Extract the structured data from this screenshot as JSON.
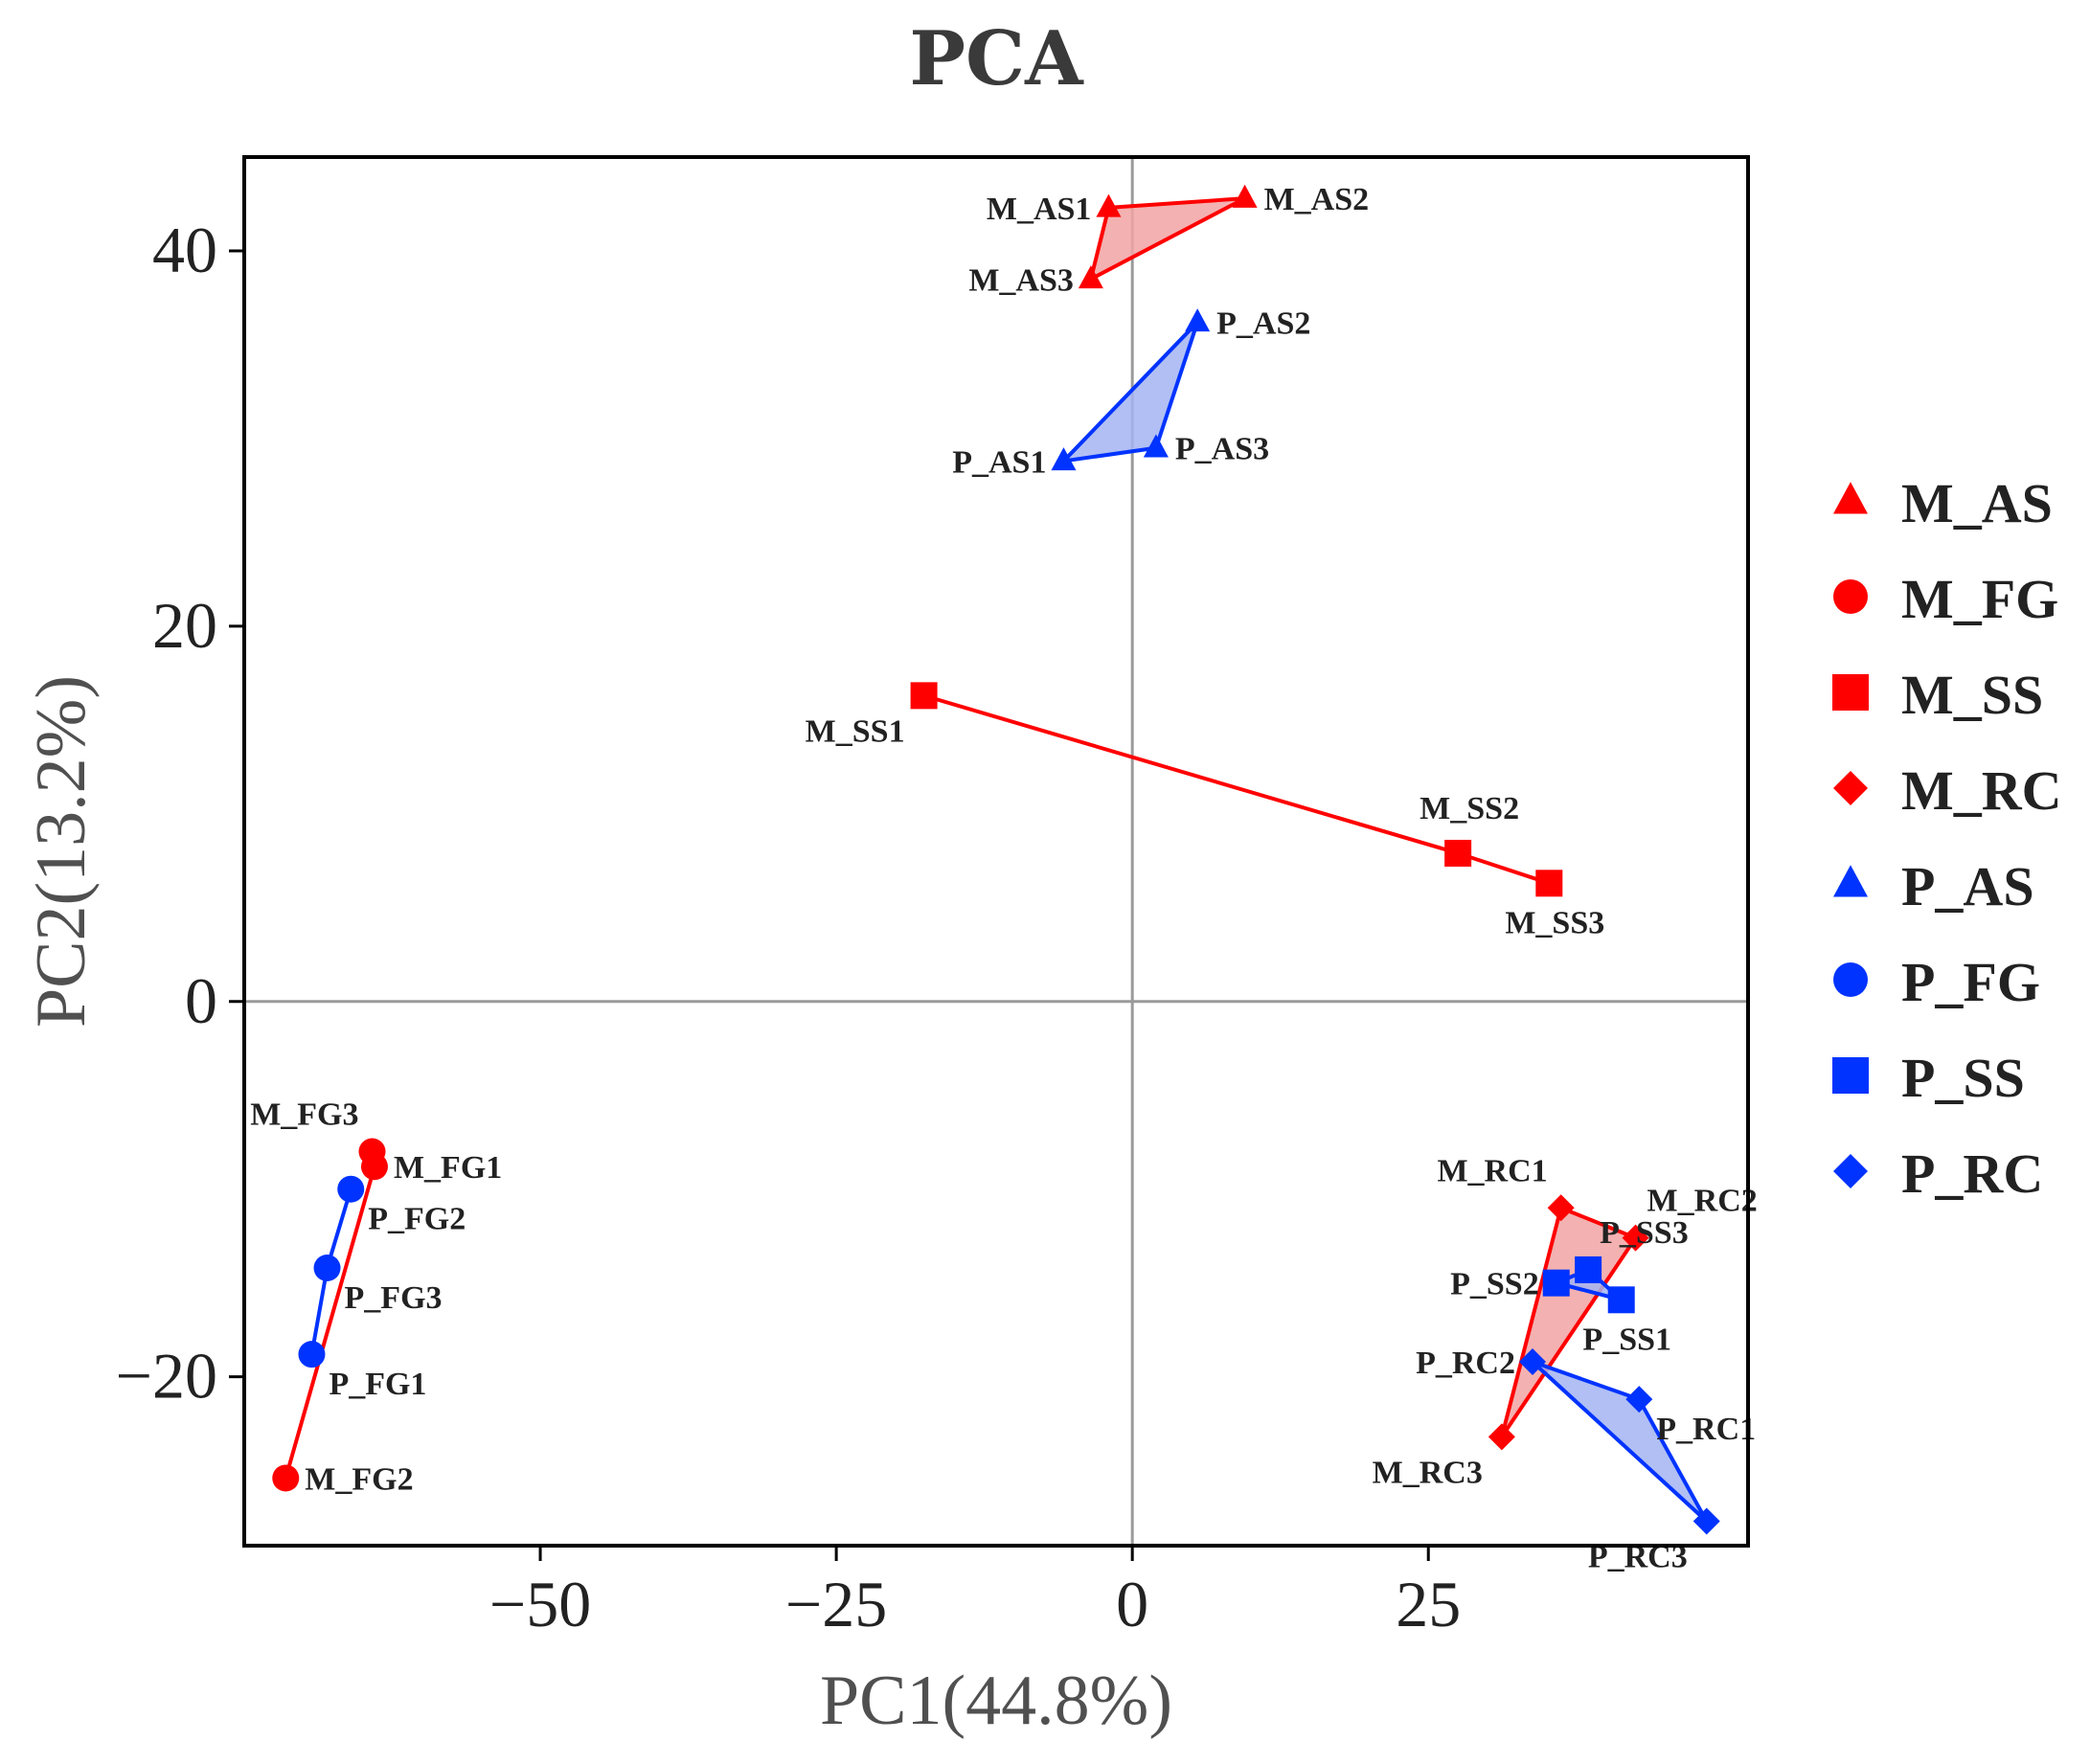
{
  "chart_data": {
    "type": "scatter",
    "title": "PCA",
    "xlabel": "PC1(44.8%)",
    "ylabel": "PC2(13.2%)",
    "xlim": [
      -75,
      52
    ],
    "ylim": [
      -29,
      45
    ],
    "xticks": [
      {
        "value": -50,
        "label": "−50"
      },
      {
        "value": -25,
        "label": "−25"
      },
      {
        "value": 0,
        "label": "0"
      },
      {
        "value": 25,
        "label": "25"
      }
    ],
    "yticks": [
      {
        "value": -20,
        "label": "−20"
      },
      {
        "value": 0,
        "label": "0"
      },
      {
        "value": 20,
        "label": "20"
      },
      {
        "value": 40,
        "label": "40"
      }
    ],
    "reference_lines": {
      "x": 0,
      "y": 0
    },
    "colors": {
      "M": "#ff0000",
      "P": "#0033ff",
      "M_fill": "#f2a3a3",
      "P_fill": "#a3b4f2"
    },
    "series": [
      {
        "name": "M_AS",
        "group": "M",
        "marker": "triangle",
        "hull": "polygon",
        "points": [
          {
            "label": "M_AS1",
            "x": -2,
            "y": 42.3,
            "pos": "left"
          },
          {
            "label": "M_AS2",
            "x": 9.5,
            "y": 42.8,
            "pos": "right"
          },
          {
            "label": "M_AS3",
            "x": -3.5,
            "y": 38.5,
            "pos": "left"
          }
        ]
      },
      {
        "name": "M_FG",
        "group": "M",
        "marker": "circle",
        "hull": "line",
        "points": [
          {
            "label": "M_FG3",
            "x": -64.2,
            "y": -8,
            "pos": "above-left"
          },
          {
            "label": "M_FG1",
            "x": -64,
            "y": -8.8,
            "pos": "right"
          },
          {
            "label": "M_FG2",
            "x": -71.5,
            "y": -25.4,
            "pos": "right"
          }
        ]
      },
      {
        "name": "M_SS",
        "group": "M",
        "marker": "square",
        "hull": "line",
        "points": [
          {
            "label": "M_SS1",
            "x": -17.6,
            "y": 16.3,
            "pos": "below-left"
          },
          {
            "label": "M_SS2",
            "x": 27.5,
            "y": 7.9,
            "pos": "above"
          },
          {
            "label": "M_SS3",
            "x": 35.2,
            "y": 6.3,
            "pos": "below"
          }
        ]
      },
      {
        "name": "M_RC",
        "group": "M",
        "marker": "diamond",
        "hull": "polygon",
        "points": [
          {
            "label": "M_RC1",
            "x": 36.2,
            "y": -11,
            "pos": "above-left"
          },
          {
            "label": "M_RC2",
            "x": 42.5,
            "y": -12.6,
            "pos": "above-right"
          },
          {
            "label": "M_RC3",
            "x": 31.2,
            "y": -23.2,
            "pos": "below-left"
          }
        ]
      },
      {
        "name": "P_AS",
        "group": "P",
        "marker": "triangle",
        "hull": "polygon",
        "points": [
          {
            "label": "P_AS1",
            "x": -5.8,
            "y": 28.8,
            "pos": "left"
          },
          {
            "label": "P_AS2",
            "x": 5.5,
            "y": 36.2,
            "pos": "right"
          },
          {
            "label": "P_AS3",
            "x": 2,
            "y": 29.5,
            "pos": "right"
          }
        ]
      },
      {
        "name": "P_FG",
        "group": "P",
        "marker": "circle",
        "hull": "line",
        "points": [
          {
            "label": "P_FG2",
            "x": -66,
            "y": -10,
            "pos": "below-right"
          },
          {
            "label": "P_FG3",
            "x": -68,
            "y": -14.2,
            "pos": "below-right"
          },
          {
            "label": "P_FG1",
            "x": -69.3,
            "y": -18.8,
            "pos": "below-right"
          }
        ]
      },
      {
        "name": "P_SS",
        "group": "P",
        "marker": "square",
        "hull": "polygon",
        "points": [
          {
            "label": "P_SS2",
            "x": 35.8,
            "y": -15,
            "pos": "left"
          },
          {
            "label": "P_SS3",
            "x": 38.5,
            "y": -14.3,
            "pos": "above-right"
          },
          {
            "label": "P_SS1",
            "x": 41.3,
            "y": -15.9,
            "pos": "below"
          }
        ]
      },
      {
        "name": "P_RC",
        "group": "P",
        "marker": "diamond",
        "hull": "polygon",
        "points": [
          {
            "label": "P_RC2",
            "x": 33.8,
            "y": -19.2,
            "pos": "left"
          },
          {
            "label": "P_RC1",
            "x": 42.8,
            "y": -21.2,
            "pos": "below-right"
          },
          {
            "label": "P_RC3",
            "x": 48.5,
            "y": -27.7,
            "pos": "below-left"
          }
        ]
      }
    ]
  }
}
